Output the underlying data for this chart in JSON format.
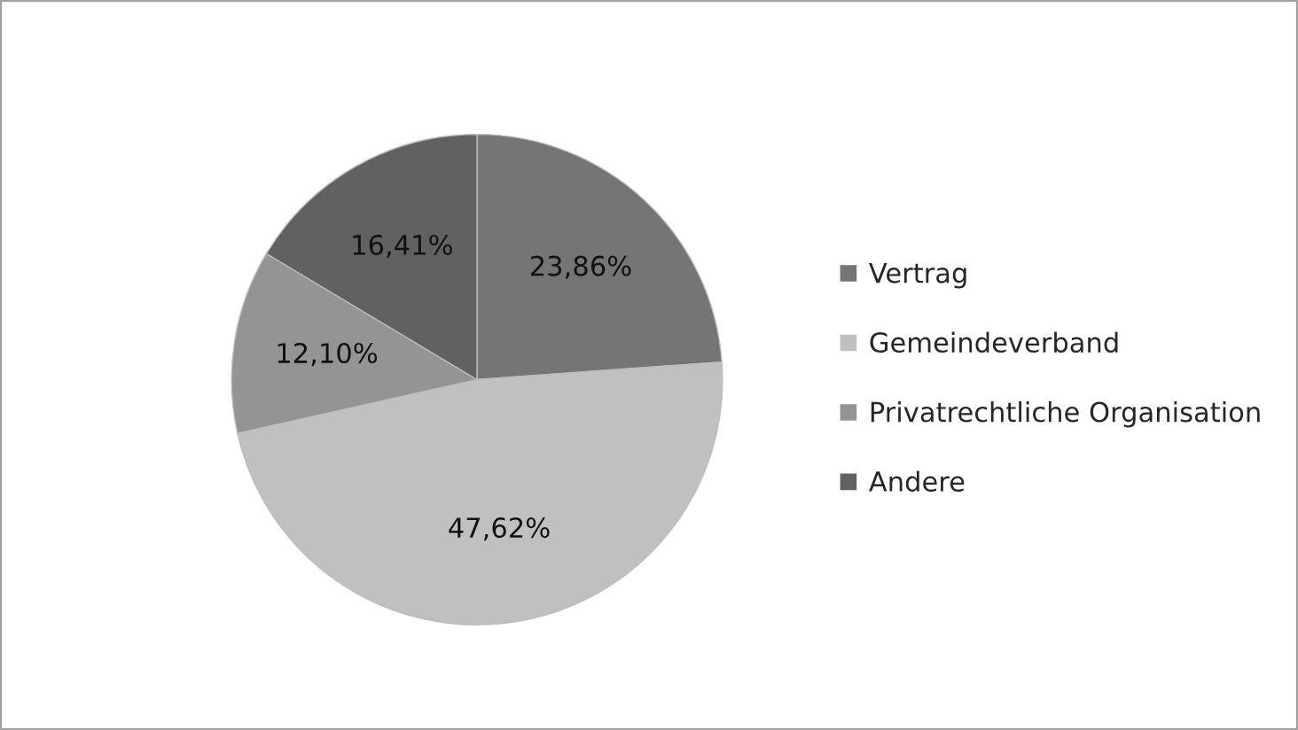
{
  "chart_data": {
    "type": "pie",
    "categories": [
      "Vertrag",
      "Gemeindeverband",
      "Privatrechtliche Organisation",
      "Andere"
    ],
    "values": [
      23.86,
      47.62,
      12.1,
      16.41
    ],
    "value_labels": [
      "23,86%",
      "47,62%",
      "12,10%",
      "16,41%"
    ],
    "colors": [
      "#757575",
      "#c0c0c0",
      "#949494",
      "#616161"
    ],
    "legend": "right"
  }
}
